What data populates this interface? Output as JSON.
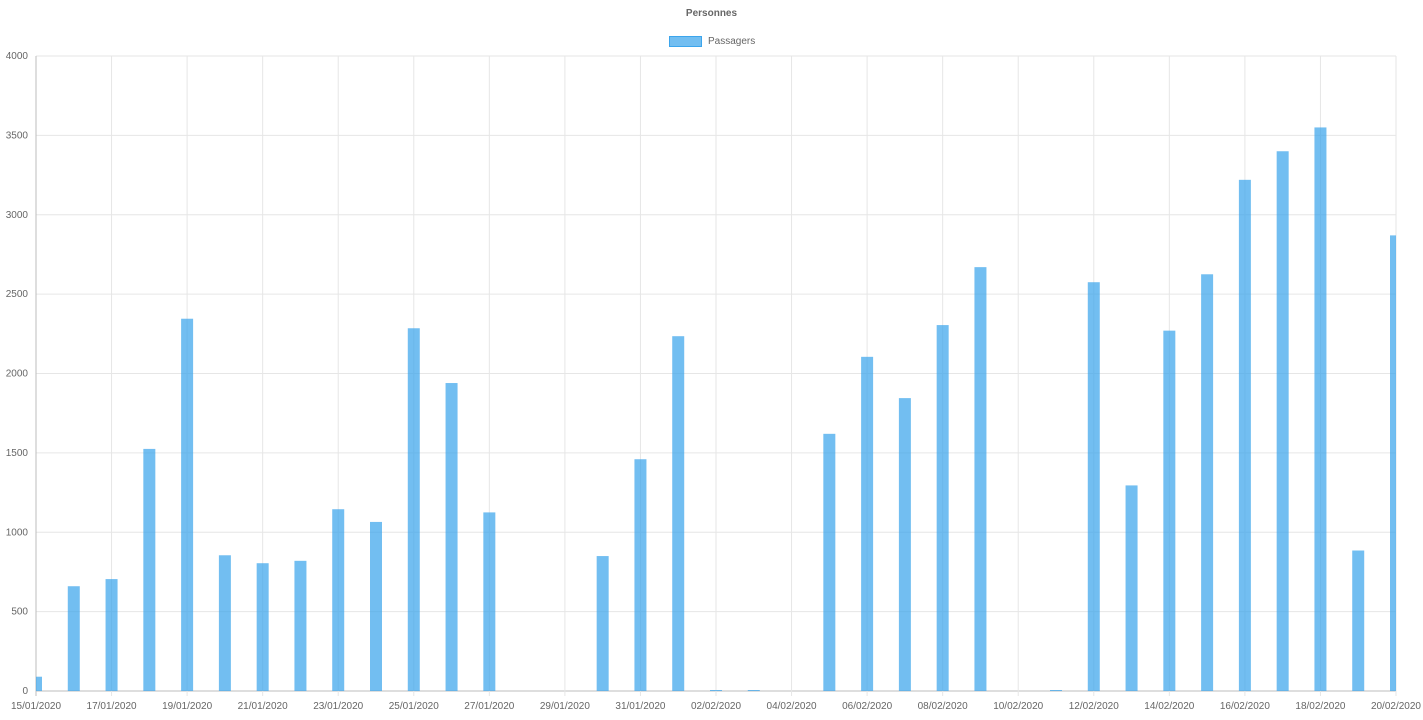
{
  "chart_data": {
    "type": "bar",
    "title": "Personnes",
    "legend": {
      "position": "top",
      "entries": [
        "Passagers"
      ]
    },
    "grid": true,
    "ylim": [
      0,
      4000
    ],
    "yticks": [
      0,
      500,
      1000,
      1500,
      2000,
      2500,
      3000,
      3500,
      4000
    ],
    "xtick_labels": [
      "15/01/2020",
      "17/01/2020",
      "19/01/2020",
      "21/01/2020",
      "23/01/2020",
      "25/01/2020",
      "27/01/2020",
      "29/01/2020",
      "31/01/2020",
      "02/02/2020",
      "04/02/2020",
      "06/02/2020",
      "08/02/2020",
      "10/02/2020",
      "12/02/2020",
      "14/02/2020",
      "16/02/2020",
      "18/02/2020",
      "20/02/2020"
    ],
    "categories": [
      "15/01/2020",
      "16/01/2020",
      "17/01/2020",
      "18/01/2020",
      "19/01/2020",
      "20/01/2020",
      "21/01/2020",
      "22/01/2020",
      "23/01/2020",
      "24/01/2020",
      "25/01/2020",
      "26/01/2020",
      "27/01/2020",
      "28/01/2020",
      "29/01/2020",
      "30/01/2020",
      "31/01/2020",
      "01/02/2020",
      "02/02/2020",
      "03/02/2020",
      "04/02/2020",
      "05/02/2020",
      "06/02/2020",
      "07/02/2020",
      "08/02/2020",
      "09/02/2020",
      "10/02/2020",
      "11/02/2020",
      "12/02/2020",
      "13/02/2020",
      "14/02/2020",
      "15/02/2020",
      "16/02/2020",
      "17/02/2020",
      "18/02/2020",
      "19/02/2020",
      "20/02/2020"
    ],
    "series": [
      {
        "name": "Passagers",
        "color": "#36a2eb",
        "values": [
          90,
          660,
          705,
          1525,
          2345,
          855,
          805,
          820,
          1145,
          1065,
          2285,
          1940,
          1125,
          0,
          0,
          850,
          1460,
          2235,
          5,
          5,
          0,
          1620,
          2105,
          1845,
          2305,
          2670,
          0,
          5,
          2575,
          1295,
          2270,
          2625,
          3220,
          3400,
          3550,
          885,
          2870
        ]
      }
    ]
  }
}
